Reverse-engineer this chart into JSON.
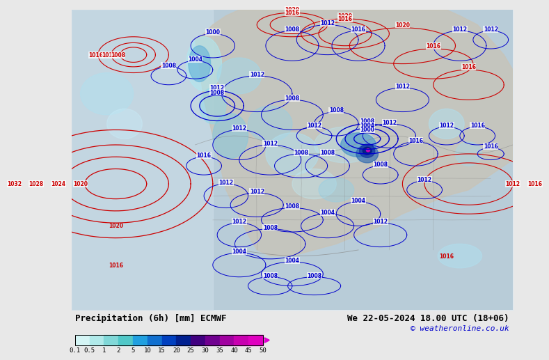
{
  "title_left": "Precipitation (6h) [mm] ECMWF",
  "title_right": "We 22-05-2024 18.00 UTC (18+06)",
  "copyright": "© weatheronline.co.uk",
  "colorbar_levels": [
    0.1,
    0.5,
    1,
    2,
    5,
    10,
    15,
    20,
    25,
    30,
    35,
    40,
    45,
    50
  ],
  "colorbar_colors": [
    "#d4f5f5",
    "#b0eaea",
    "#80d8d8",
    "#50c8c8",
    "#20a0e0",
    "#1070d0",
    "#0040c0",
    "#002090",
    "#400080",
    "#700090",
    "#a000a0",
    "#c800b0",
    "#e000c0",
    "#ff00d0"
  ],
  "bg_color": "#e8e8e8",
  "map_bg": "#f0f0f0",
  "bottom_bar_color": "#d0d0d0",
  "colorbar_arrow_color": "#e000d0",
  "label_fontsize": 9,
  "copyright_fontsize": 8
}
